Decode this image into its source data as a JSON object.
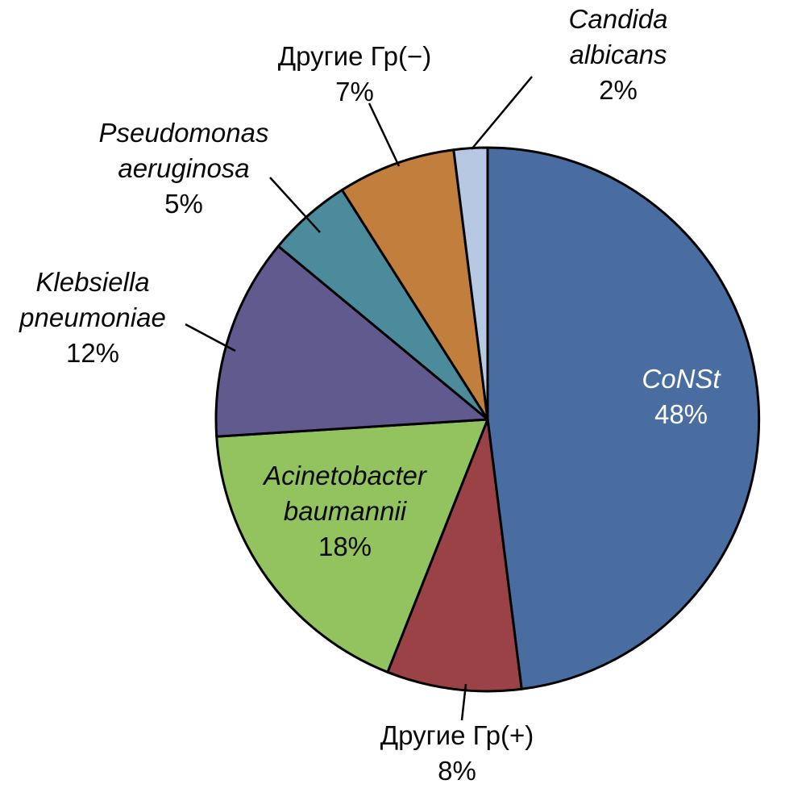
{
  "chart_data": {
    "type": "pie",
    "title": "",
    "unit": "%",
    "start_angle_deg": -90,
    "direction": "clockwise",
    "stroke_color": "#000000",
    "background": "#ffffff",
    "segments": [
      {
        "name": "CoNSt",
        "name_lines": [
          "CoNSt"
        ],
        "value": 48,
        "pct_label": "48%",
        "color": "#4a6da1",
        "italic_name": true,
        "label_placement": "inside",
        "label_color": "#ffffff"
      },
      {
        "name": "Другие Гр(+)",
        "name_lines": [
          "Другие Гр(+)"
        ],
        "value": 8,
        "pct_label": "8%",
        "color": "#9a4245",
        "italic_name": false,
        "label_placement": "outside"
      },
      {
        "name": "Acinetobacter baumannii",
        "name_lines": [
          "Acinetobacter",
          "baumannii"
        ],
        "value": 18,
        "pct_label": "18%",
        "color": "#92c35e",
        "italic_name": true,
        "label_placement": "inside",
        "label_color": "#1a1a1a"
      },
      {
        "name": "Klebsiella pneumoniae",
        "name_lines": [
          "Klebsiella",
          "pneumoniae"
        ],
        "value": 12,
        "pct_label": "12%",
        "color": "#615a8e",
        "italic_name": true,
        "label_placement": "outside"
      },
      {
        "name": "Pseudomonas aeruginosa",
        "name_lines": [
          "Pseudomonas",
          "aeruginosa"
        ],
        "value": 5,
        "pct_label": "5%",
        "color": "#4b8b9b",
        "italic_name": true,
        "label_placement": "outside"
      },
      {
        "name": "Другие Гр(−)",
        "name_lines": [
          "Другие Гр(−)"
        ],
        "value": 7,
        "pct_label": "7%",
        "color": "#c17e3c",
        "italic_name": false,
        "label_placement": "outside"
      },
      {
        "name": "Candida albicans",
        "name_lines": [
          "Candida",
          "albicans"
        ],
        "value": 2,
        "pct_label": "2%",
        "color": "#b7c9e2",
        "italic_name": true,
        "label_placement": "outside"
      }
    ]
  }
}
